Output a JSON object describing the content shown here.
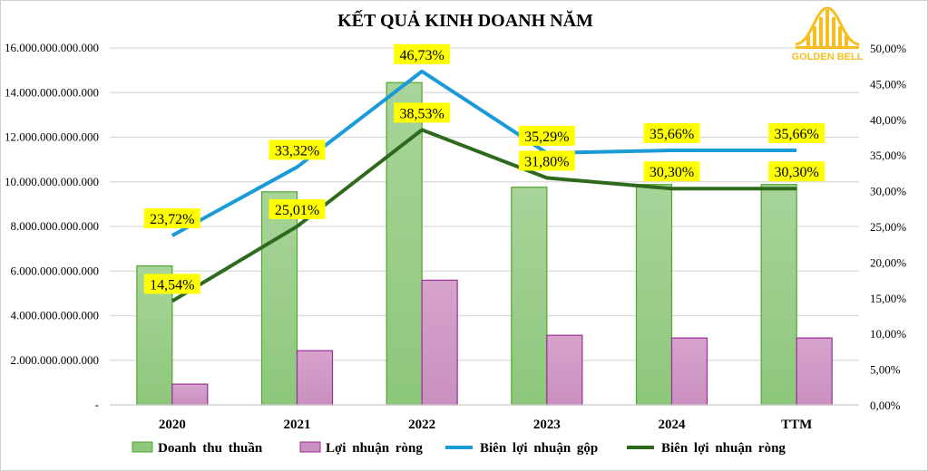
{
  "logo_text": "GOLDEN BELL",
  "chart_data": {
    "type": "bar+line",
    "title": "KẾT QUẢ KINH DOANH NĂM",
    "categories": [
      "2020",
      "2021",
      "2022",
      "2023",
      "2024",
      "TTM"
    ],
    "left_axis": {
      "ylim": [
        0,
        16000000000000
      ],
      "ticks": [
        {
          "value": 0,
          "label": "-"
        },
        {
          "value": 2000000000000,
          "label": "2.000.000.000.000"
        },
        {
          "value": 4000000000000,
          "label": "4.000.000.000.000"
        },
        {
          "value": 6000000000000,
          "label": "6.000.000.000.000"
        },
        {
          "value": 8000000000000,
          "label": "8.000.000.000.000"
        },
        {
          "value": 10000000000000,
          "label": "10.000.000.000.000"
        },
        {
          "value": 12000000000000,
          "label": "12.000.000.000.000"
        },
        {
          "value": 14000000000000,
          "label": "14.000.000.000.000"
        },
        {
          "value": 16000000000000,
          "label": "16.000.000.000.000"
        }
      ]
    },
    "right_axis": {
      "ylim": [
        0,
        50
      ],
      "ticks": [
        {
          "value": 0,
          "label": "0,00%"
        },
        {
          "value": 5,
          "label": "5,00%"
        },
        {
          "value": 10,
          "label": "10,00%"
        },
        {
          "value": 15,
          "label": "15,00%"
        },
        {
          "value": 20,
          "label": "20,00%"
        },
        {
          "value": 25,
          "label": "25,00%"
        },
        {
          "value": 30,
          "label": "30,00%"
        },
        {
          "value": 35,
          "label": "35,00%"
        },
        {
          "value": 40,
          "label": "40,00%"
        },
        {
          "value": 45,
          "label": "45,00%"
        },
        {
          "value": 50,
          "label": "50,00%"
        }
      ]
    },
    "grid": true,
    "legend_position": "bottom",
    "series": [
      {
        "name": "Doanh thu thuần",
        "type": "bar",
        "axis": "left",
        "color": "#8dc77b",
        "border": "#4ea72e",
        "values": [
          6230000000000,
          9550000000000,
          14450000000000,
          9760000000000,
          9880000000000,
          9880000000000
        ]
      },
      {
        "name": "Lợi nhuận ròng",
        "type": "bar",
        "axis": "left",
        "color": "#c98fc0",
        "border": "#9b2f95",
        "values": [
          930000000000,
          2430000000000,
          5590000000000,
          3120000000000,
          3000000000000,
          3000000000000
        ]
      },
      {
        "name": "Biên lợi nhuận gộp",
        "type": "line",
        "axis": "right",
        "color": "#1a9ad6",
        "values": [
          23.72,
          33.32,
          46.73,
          35.29,
          35.66,
          35.66
        ],
        "labels": [
          "23,72%",
          "33,32%",
          "46,73%",
          "35,29%",
          "35,66%",
          "35,66%"
        ]
      },
      {
        "name": "Biên lợi nhuận ròng",
        "type": "line",
        "axis": "right",
        "color": "#2e6a1e",
        "values": [
          14.54,
          25.01,
          38.53,
          31.8,
          30.3,
          30.3
        ],
        "labels": [
          "14,54%",
          "25,01%",
          "38,53%",
          "31,80%",
          "30,30%",
          "30,30%"
        ]
      }
    ]
  }
}
